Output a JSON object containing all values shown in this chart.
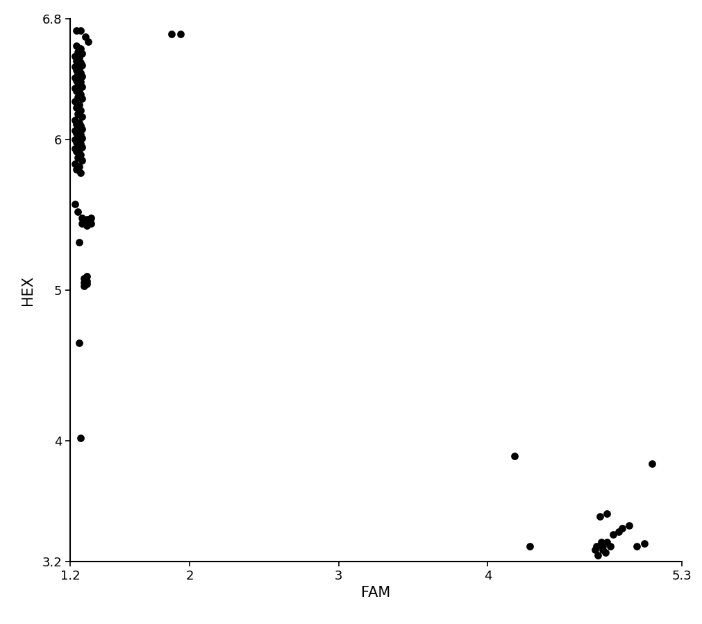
{
  "title": "",
  "xlabel": "FAM",
  "ylabel": "HEX",
  "xlim": [
    1.2,
    5.3
  ],
  "ylim": [
    3.2,
    6.8
  ],
  "xticks": [
    1.2,
    2,
    3,
    4,
    5.3
  ],
  "yticks": [
    3.2,
    4,
    5,
    6,
    6.8
  ],
  "marker_color": "#000000",
  "marker_size": 60,
  "points": [
    [
      1.24,
      6.72
    ],
    [
      1.27,
      6.72
    ],
    [
      1.3,
      6.68
    ],
    [
      1.32,
      6.65
    ],
    [
      1.24,
      6.62
    ],
    [
      1.27,
      6.6
    ],
    [
      1.25,
      6.58
    ],
    [
      1.28,
      6.57
    ],
    [
      1.23,
      6.55
    ],
    [
      1.26,
      6.54
    ],
    [
      1.24,
      6.52
    ],
    [
      1.27,
      6.51
    ],
    [
      1.25,
      6.5
    ],
    [
      1.28,
      6.49
    ],
    [
      1.23,
      6.48
    ],
    [
      1.26,
      6.47
    ],
    [
      1.24,
      6.46
    ],
    [
      1.27,
      6.44
    ],
    [
      1.25,
      6.43
    ],
    [
      1.28,
      6.42
    ],
    [
      1.23,
      6.41
    ],
    [
      1.26,
      6.4
    ],
    [
      1.24,
      6.39
    ],
    [
      1.27,
      6.38
    ],
    [
      1.25,
      6.36
    ],
    [
      1.28,
      6.35
    ],
    [
      1.23,
      6.34
    ],
    [
      1.26,
      6.33
    ],
    [
      1.24,
      6.32
    ],
    [
      1.27,
      6.3
    ],
    [
      1.25,
      6.28
    ],
    [
      1.28,
      6.27
    ],
    [
      1.23,
      6.25
    ],
    [
      1.26,
      6.23
    ],
    [
      1.24,
      6.21
    ],
    [
      1.27,
      6.19
    ],
    [
      1.25,
      6.17
    ],
    [
      1.28,
      6.15
    ],
    [
      1.23,
      6.13
    ],
    [
      1.26,
      6.11
    ],
    [
      1.24,
      6.1
    ],
    [
      1.27,
      6.09
    ],
    [
      1.25,
      6.08
    ],
    [
      1.28,
      6.07
    ],
    [
      1.23,
      6.06
    ],
    [
      1.26,
      6.05
    ],
    [
      1.24,
      6.04
    ],
    [
      1.27,
      6.03
    ],
    [
      1.25,
      6.02
    ],
    [
      1.28,
      6.01
    ],
    [
      1.23,
      6.0
    ],
    [
      1.26,
      5.99
    ],
    [
      1.24,
      5.98
    ],
    [
      1.27,
      5.97
    ],
    [
      1.25,
      5.96
    ],
    [
      1.28,
      5.95
    ],
    [
      1.23,
      5.94
    ],
    [
      1.26,
      5.93
    ],
    [
      1.24,
      5.92
    ],
    [
      1.27,
      5.9
    ],
    [
      1.25,
      5.88
    ],
    [
      1.28,
      5.86
    ],
    [
      1.23,
      5.84
    ],
    [
      1.26,
      5.82
    ],
    [
      1.24,
      5.8
    ],
    [
      1.27,
      5.78
    ],
    [
      1.23,
      5.57
    ],
    [
      1.25,
      5.52
    ],
    [
      1.28,
      5.48
    ],
    [
      1.31,
      5.47
    ],
    [
      1.34,
      5.48
    ],
    [
      1.28,
      5.44
    ],
    [
      1.31,
      5.43
    ],
    [
      1.34,
      5.44
    ],
    [
      1.26,
      5.32
    ],
    [
      1.29,
      5.08
    ],
    [
      1.31,
      5.09
    ],
    [
      1.29,
      5.05
    ],
    [
      1.31,
      5.06
    ],
    [
      1.29,
      5.03
    ],
    [
      1.31,
      5.04
    ],
    [
      1.26,
      4.65
    ],
    [
      1.27,
      4.02
    ],
    [
      1.88,
      6.7
    ],
    [
      1.94,
      6.7
    ],
    [
      4.18,
      3.9
    ],
    [
      4.28,
      3.3
    ],
    [
      4.72,
      3.28
    ],
    [
      4.77,
      3.28
    ],
    [
      4.74,
      3.24
    ],
    [
      4.79,
      3.26
    ],
    [
      4.73,
      3.3
    ],
    [
      4.77,
      3.3
    ],
    [
      4.82,
      3.3
    ],
    [
      4.76,
      3.33
    ],
    [
      4.8,
      3.33
    ],
    [
      4.75,
      3.5
    ],
    [
      4.8,
      3.52
    ],
    [
      4.84,
      3.38
    ],
    [
      4.88,
      3.4
    ],
    [
      4.9,
      3.42
    ],
    [
      4.95,
      3.44
    ],
    [
      5.0,
      3.3
    ],
    [
      5.05,
      3.32
    ],
    [
      5.1,
      3.85
    ]
  ]
}
